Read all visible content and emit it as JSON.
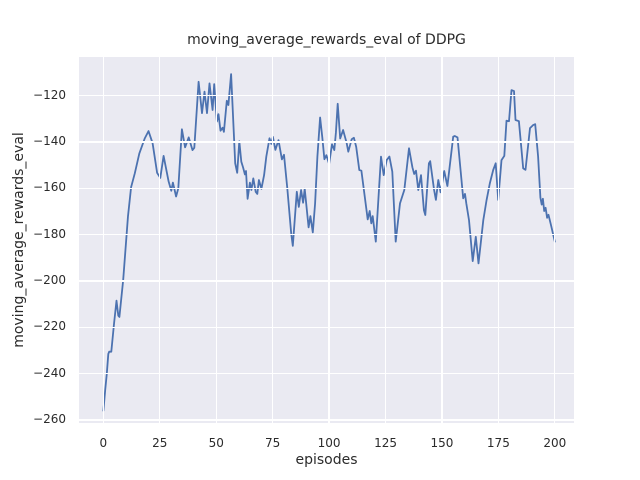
{
  "figure": {
    "title": "moving_average_rewards_eval of DDPG",
    "xlabel": "episodes",
    "ylabel": "moving_average_rewards_eval"
  },
  "colors": {
    "line": "#4c72b0",
    "plot_background": "#eaeaf2",
    "grid": "#ffffff",
    "text": "#2b2b2b",
    "figure_background": "#ffffff"
  },
  "chart_data": {
    "type": "line",
    "title": "moving_average_rewards_eval of DDPG",
    "xlabel": "episodes",
    "ylabel": "moving_average_rewards_eval",
    "x_ticks": [
      0,
      25,
      50,
      75,
      100,
      125,
      150,
      175,
      200
    ],
    "y_ticks": [
      -260,
      -240,
      -220,
      -200,
      -180,
      -160,
      -140,
      -120
    ],
    "xlim": [
      -10.8,
      208.5
    ],
    "ylim": [
      -261.3,
      -103.3
    ],
    "grid": true,
    "legend": "none",
    "style": "seaborn-darkgrid",
    "series": [
      {
        "name": "moving_average_rewards_eval",
        "color": "#4c72b0",
        "points": [
          [
            0,
            -256
          ],
          [
            0.8,
            -247
          ],
          [
            1.5,
            -240
          ],
          [
            2.2,
            -231.5
          ],
          [
            2.6,
            -230.5
          ],
          [
            3.5,
            -230.5
          ],
          [
            4.7,
            -218.5
          ],
          [
            5.8,
            -208.5
          ],
          [
            6.6,
            -215
          ],
          [
            7.1,
            -215.5
          ],
          [
            8.8,
            -199.5
          ],
          [
            10.9,
            -172
          ],
          [
            12.3,
            -159.5
          ],
          [
            13.9,
            -153.5
          ],
          [
            15.9,
            -145
          ],
          [
            18.3,
            -138.5
          ],
          [
            20,
            -135.3
          ],
          [
            21.8,
            -140.5
          ],
          [
            23.8,
            -153.3
          ],
          [
            25.2,
            -155.5
          ],
          [
            26.7,
            -146
          ],
          [
            28.9,
            -157
          ],
          [
            30.1,
            -161
          ],
          [
            30.8,
            -157.5
          ],
          [
            32.2,
            -163.5
          ],
          [
            33.2,
            -160
          ],
          [
            34.8,
            -134.5
          ],
          [
            36.2,
            -142.3
          ],
          [
            37.8,
            -138
          ],
          [
            39.5,
            -143.5
          ],
          [
            40.3,
            -142.5
          ],
          [
            42.2,
            -114
          ],
          [
            43.7,
            -127.5
          ],
          [
            44.8,
            -118.3
          ],
          [
            45.9,
            -127.5
          ],
          [
            47,
            -114.7
          ],
          [
            48.4,
            -126.2
          ],
          [
            49.1,
            -115
          ],
          [
            50.3,
            -131.2
          ],
          [
            51,
            -128
          ],
          [
            51.9,
            -135.1
          ],
          [
            52.8,
            -133.8
          ],
          [
            53.4,
            -135.6
          ],
          [
            54.7,
            -122.2
          ],
          [
            55.4,
            -124
          ],
          [
            56.6,
            -110.7
          ],
          [
            58.4,
            -149.2
          ],
          [
            59.3,
            -153.3
          ],
          [
            60.2,
            -139.7
          ],
          [
            61.1,
            -148.5
          ],
          [
            61.9,
            -151
          ],
          [
            62.7,
            -154
          ],
          [
            63.2,
            -152.5
          ],
          [
            63.9,
            -164.5
          ],
          [
            64.9,
            -157.5
          ],
          [
            65.6,
            -160.7
          ],
          [
            66.4,
            -155.7
          ],
          [
            67.5,
            -161.5
          ],
          [
            68.2,
            -162.4
          ],
          [
            68.9,
            -156.4
          ],
          [
            70,
            -160.2
          ],
          [
            71.2,
            -154.3
          ],
          [
            72.2,
            -146.3
          ],
          [
            73.6,
            -138.4
          ],
          [
            74.4,
            -140.8
          ],
          [
            75.1,
            -137.8
          ],
          [
            76.2,
            -143.4
          ],
          [
            77.6,
            -139.2
          ],
          [
            79.1,
            -147.5
          ],
          [
            80,
            -145.5
          ],
          [
            81.5,
            -160
          ],
          [
            83.2,
            -179.5
          ],
          [
            83.9,
            -184.8
          ],
          [
            85.7,
            -161.5
          ],
          [
            86.6,
            -168
          ],
          [
            87.6,
            -160.7
          ],
          [
            88.5,
            -166.2
          ],
          [
            89.2,
            -160.2
          ],
          [
            90.9,
            -176.8
          ],
          [
            91.7,
            -172
          ],
          [
            92.8,
            -179
          ],
          [
            93.8,
            -166.5
          ],
          [
            94.8,
            -146.3
          ],
          [
            96,
            -129.4
          ],
          [
            97,
            -138
          ],
          [
            97.9,
            -147.4
          ],
          [
            98.8,
            -145.7
          ],
          [
            100,
            -149.5
          ],
          [
            101.3,
            -141
          ],
          [
            102.3,
            -143.5
          ],
          [
            103,
            -136
          ],
          [
            103.8,
            -123.5
          ],
          [
            104.9,
            -138.5
          ],
          [
            106.2,
            -134.8
          ],
          [
            107.8,
            -140.5
          ],
          [
            108.5,
            -144.2
          ],
          [
            110,
            -138.8
          ],
          [
            111,
            -138.2
          ],
          [
            112,
            -142.1
          ],
          [
            113.4,
            -152.1
          ],
          [
            114.3,
            -152.4
          ],
          [
            117.1,
            -173.4
          ],
          [
            118,
            -169.8
          ],
          [
            118.7,
            -175.1
          ],
          [
            119.3,
            -172
          ],
          [
            120.7,
            -183
          ],
          [
            123,
            -146.3
          ],
          [
            124.2,
            -154.3
          ],
          [
            125.5,
            -147.8
          ],
          [
            126.7,
            -146.3
          ],
          [
            128,
            -152.8
          ],
          [
            129.5,
            -183
          ],
          [
            131.4,
            -166.5
          ],
          [
            133.3,
            -160.7
          ],
          [
            135.4,
            -142.7
          ],
          [
            136.9,
            -150.9
          ],
          [
            137.7,
            -153.8
          ],
          [
            138.5,
            -152.4
          ],
          [
            139.5,
            -160.7
          ],
          [
            140.7,
            -154.3
          ],
          [
            142,
            -169.4
          ],
          [
            142.6,
            -171.5
          ],
          [
            144.2,
            -149.2
          ],
          [
            144.8,
            -148.3
          ],
          [
            146.5,
            -160.7
          ],
          [
            147.3,
            -165
          ],
          [
            148.4,
            -156.4
          ],
          [
            149.4,
            -161.7
          ],
          [
            151,
            -152.5
          ],
          [
            152.4,
            -159
          ],
          [
            155,
            -137.7
          ],
          [
            155.7,
            -137.4
          ],
          [
            156.9,
            -138
          ],
          [
            159.4,
            -164.3
          ],
          [
            160.2,
            -162.4
          ],
          [
            160.8,
            -166.5
          ],
          [
            162,
            -173.7
          ],
          [
            163.6,
            -191.4
          ],
          [
            165,
            -180.9
          ],
          [
            166.2,
            -192.4
          ],
          [
            168.3,
            -173.7
          ],
          [
            169.8,
            -165
          ],
          [
            171.2,
            -157.9
          ],
          [
            172.7,
            -152.1
          ],
          [
            173.8,
            -149.2
          ],
          [
            174.9,
            -165
          ],
          [
            176.4,
            -147.8
          ],
          [
            177.6,
            -146
          ],
          [
            178.6,
            -130.8
          ],
          [
            179.7,
            -131
          ],
          [
            180.8,
            -117.6
          ],
          [
            181.9,
            -118
          ],
          [
            182.6,
            -130.5
          ],
          [
            184.1,
            -131
          ],
          [
            186,
            -151.4
          ],
          [
            187,
            -152
          ],
          [
            189,
            -134
          ],
          [
            190.4,
            -132.7
          ],
          [
            191.3,
            -132.3
          ],
          [
            192.6,
            -146.3
          ],
          [
            193.6,
            -164
          ],
          [
            194.2,
            -167
          ],
          [
            194.7,
            -164.5
          ],
          [
            195.3,
            -169.8
          ],
          [
            195.9,
            -168.4
          ],
          [
            196.6,
            -172.7
          ],
          [
            197.2,
            -171.4
          ],
          [
            198.5,
            -176.6
          ],
          [
            199.3,
            -180
          ],
          [
            200,
            -183
          ]
        ]
      }
    ]
  }
}
